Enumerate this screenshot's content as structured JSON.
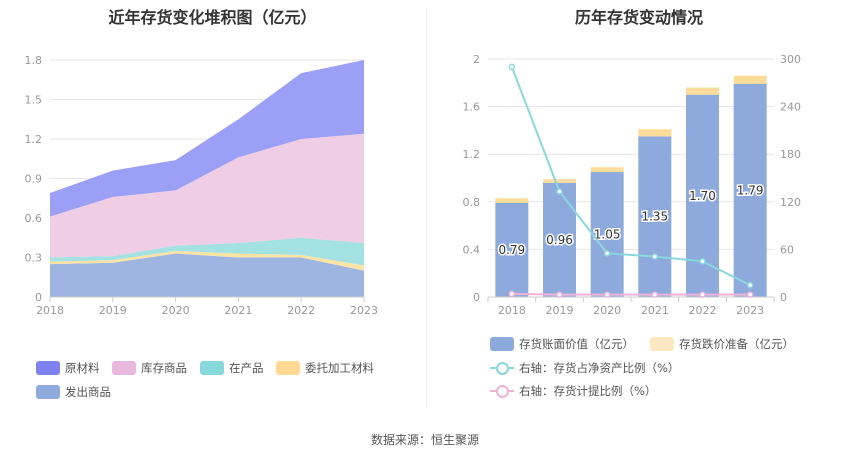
{
  "source": "数据来源：恒生聚源",
  "chart_data": [
    {
      "type": "area",
      "title": "近年存货变化堆积图（亿元）",
      "stacked": true,
      "x": [
        "2018",
        "2019",
        "2020",
        "2021",
        "2022",
        "2023"
      ],
      "ylim": [
        0,
        1.8
      ],
      "yticks": [
        "0",
        "0.3",
        "0.6",
        "0.9",
        "1.2",
        "1.5",
        "1.8"
      ],
      "grid": true,
      "legend_position": "bottom",
      "series": [
        {
          "name": "发出商品",
          "color": "#9db5e0",
          "values": [
            0.25,
            0.26,
            0.33,
            0.3,
            0.3,
            0.2
          ]
        },
        {
          "name": "委托加工材料",
          "color": "#fbe3a6",
          "values": [
            0.02,
            0.02,
            0.02,
            0.03,
            0.02,
            0.04
          ]
        },
        {
          "name": "在产品",
          "color": "#a3e1e3",
          "values": [
            0.03,
            0.03,
            0.04,
            0.08,
            0.13,
            0.17
          ]
        },
        {
          "name": "库存商品",
          "color": "#efcde5",
          "values": [
            0.31,
            0.45,
            0.42,
            0.65,
            0.75,
            0.83
          ]
        },
        {
          "name": "原材料",
          "color": "#9c9ff6",
          "values": [
            0.18,
            0.2,
            0.23,
            0.29,
            0.5,
            0.56
          ]
        }
      ],
      "legend": [
        {
          "name": "原材料",
          "color": "#7f83f2"
        },
        {
          "name": "库存商品",
          "color": "#e9b8df"
        },
        {
          "name": "在产品",
          "color": "#87d8dc"
        },
        {
          "name": "委托加工材料",
          "color": "#fdd993"
        },
        {
          "name": "发出商品",
          "color": "#8eaadc"
        }
      ]
    },
    {
      "type": "bar",
      "title": "历年存货变动情况",
      "categories": [
        "2018",
        "2019",
        "2020",
        "2021",
        "2022",
        "2023"
      ],
      "ylim_left": [
        0,
        2
      ],
      "yticks_left": [
        "0",
        "0.4",
        "0.8",
        "1.2",
        "1.6",
        "2"
      ],
      "ylim_right": [
        0,
        300
      ],
      "yticks_right": [
        "0",
        "60",
        "120",
        "180",
        "240",
        "300"
      ],
      "grid": true,
      "legend_position": "bottom",
      "series": [
        {
          "name": "存货账面价值（亿元）",
          "axis": "left",
          "kind": "bar",
          "color": "#8eaadc",
          "values": [
            0.79,
            0.96,
            1.05,
            1.35,
            1.7,
            1.79
          ],
          "labels": [
            "0.79",
            "0.96",
            "1.05",
            "1.35",
            "1.70",
            "1.79"
          ]
        },
        {
          "name": "存货跌价准备（亿元）",
          "axis": "left",
          "kind": "bar-stacked",
          "color": "#fbdc9a",
          "values": [
            0.04,
            0.03,
            0.04,
            0.06,
            0.06,
            0.07
          ]
        },
        {
          "name": "右轴：存货占净资产比例（%）",
          "axis": "right",
          "kind": "line",
          "color": "#8ad6de",
          "values": [
            290,
            133,
            55,
            51,
            45,
            15
          ]
        },
        {
          "name": "右轴：存货计提比例（%）",
          "axis": "right",
          "kind": "line",
          "color": "#f0b3d8",
          "values": [
            4,
            3,
            3,
            3,
            3,
            3
          ]
        }
      ],
      "legend": [
        {
          "name": "存货账面价值（亿元）",
          "color": "#8eaadc",
          "kind": "box"
        },
        {
          "name": "存货跌价准备（亿元）",
          "color": "#fde8c2",
          "kind": "box"
        },
        {
          "name": "右轴：存货占净资产比例（%）",
          "color": "#8ad6de",
          "kind": "line"
        },
        {
          "name": "右轴：存货计提比例（%）",
          "color": "#f0b3d8",
          "kind": "line"
        }
      ]
    }
  ]
}
